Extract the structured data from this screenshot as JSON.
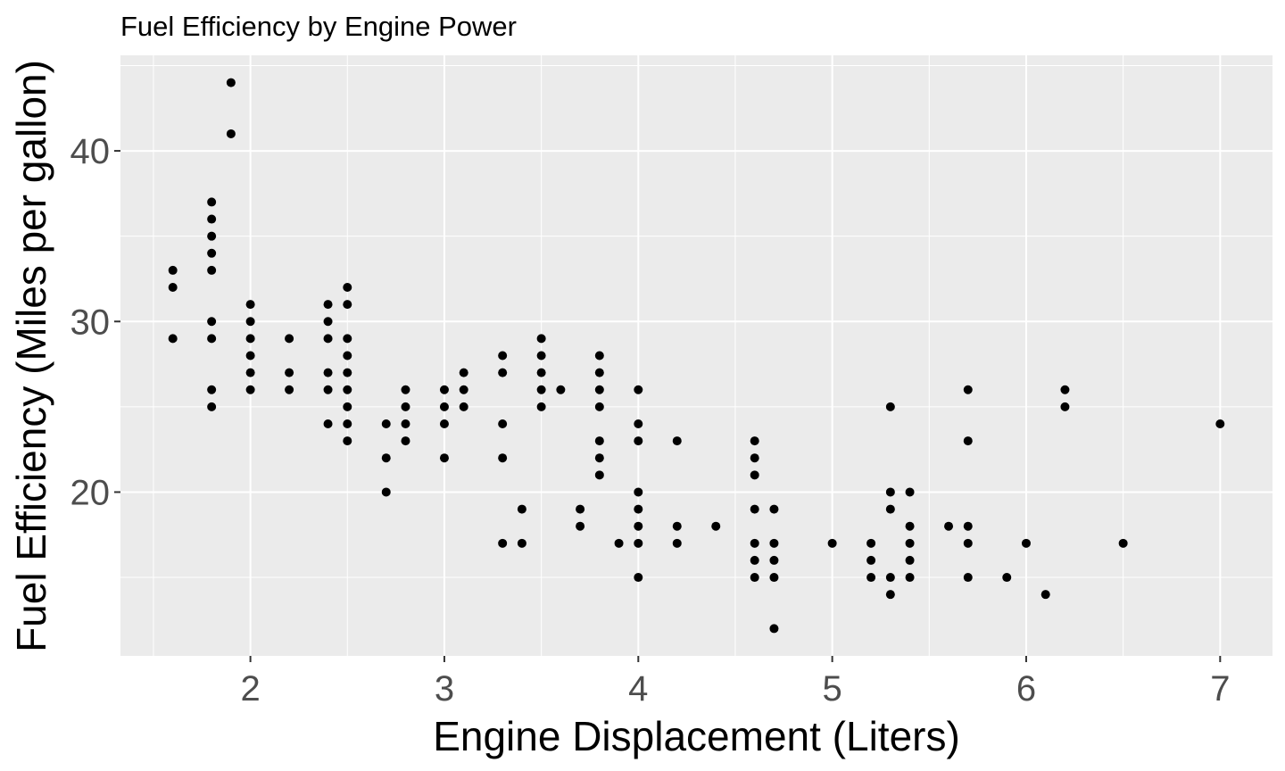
{
  "chart_data": {
    "type": "scatter",
    "title": "Fuel Efficiency by Engine Power",
    "xlabel": "Engine Displacement (Liters)",
    "ylabel": "Fuel Efficiency (Miles per gallon)",
    "xlim": [
      1.33,
      7.27
    ],
    "ylim": [
      10.4,
      45.6
    ],
    "xticks": [
      2,
      3,
      4,
      5,
      6,
      7
    ],
    "xtick_labels": [
      "2",
      "3",
      "4",
      "5",
      "6",
      "7"
    ],
    "yticks": [
      20,
      30,
      40
    ],
    "ytick_labels": [
      "20",
      "30",
      "40"
    ],
    "x_minor_gridlines": [
      1.5,
      2.5,
      3.5,
      4.5,
      5.5,
      6.5
    ],
    "y_minor_gridlines": [
      15,
      25,
      35,
      45
    ],
    "grid": true,
    "legend": "none",
    "colors": {
      "panel": "#ebebeb",
      "grid": "#ffffff",
      "point": "#000000",
      "tick_text": "#4d4d4d"
    },
    "points": [
      [
        1.6,
        33
      ],
      [
        1.6,
        32
      ],
      [
        1.6,
        29
      ],
      [
        1.8,
        37
      ],
      [
        1.8,
        36
      ],
      [
        1.8,
        35
      ],
      [
        1.8,
        34
      ],
      [
        1.8,
        33
      ],
      [
        1.8,
        30
      ],
      [
        1.8,
        29
      ],
      [
        1.8,
        26
      ],
      [
        1.8,
        25
      ],
      [
        1.9,
        44
      ],
      [
        1.9,
        41
      ],
      [
        2.0,
        31
      ],
      [
        2.0,
        30
      ],
      [
        2.0,
        29
      ],
      [
        2.0,
        28
      ],
      [
        2.0,
        27
      ],
      [
        2.0,
        26
      ],
      [
        2.2,
        29
      ],
      [
        2.2,
        27
      ],
      [
        2.2,
        26
      ],
      [
        2.4,
        31
      ],
      [
        2.4,
        30
      ],
      [
        2.4,
        29
      ],
      [
        2.4,
        27
      ],
      [
        2.4,
        26
      ],
      [
        2.4,
        24
      ],
      [
        2.5,
        32
      ],
      [
        2.5,
        31
      ],
      [
        2.5,
        29
      ],
      [
        2.5,
        28
      ],
      [
        2.5,
        27
      ],
      [
        2.5,
        26
      ],
      [
        2.5,
        25
      ],
      [
        2.5,
        24
      ],
      [
        2.5,
        23
      ],
      [
        2.7,
        24
      ],
      [
        2.7,
        22
      ],
      [
        2.7,
        20
      ],
      [
        2.8,
        26
      ],
      [
        2.8,
        25
      ],
      [
        2.8,
        24
      ],
      [
        2.8,
        23
      ],
      [
        3.0,
        26
      ],
      [
        3.0,
        25
      ],
      [
        3.0,
        24
      ],
      [
        3.0,
        22
      ],
      [
        3.1,
        27
      ],
      [
        3.1,
        26
      ],
      [
        3.1,
        25
      ],
      [
        3.3,
        28
      ],
      [
        3.3,
        27
      ],
      [
        3.3,
        24
      ],
      [
        3.3,
        22
      ],
      [
        3.3,
        17
      ],
      [
        3.4,
        19
      ],
      [
        3.4,
        17
      ],
      [
        3.5,
        29
      ],
      [
        3.5,
        28
      ],
      [
        3.5,
        27
      ],
      [
        3.5,
        26
      ],
      [
        3.5,
        25
      ],
      [
        3.6,
        26
      ],
      [
        3.7,
        19
      ],
      [
        3.7,
        18
      ],
      [
        3.8,
        28
      ],
      [
        3.8,
        27
      ],
      [
        3.8,
        26
      ],
      [
        3.8,
        25
      ],
      [
        3.8,
        23
      ],
      [
        3.8,
        22
      ],
      [
        3.8,
        21
      ],
      [
        3.9,
        17
      ],
      [
        4.0,
        26
      ],
      [
        4.0,
        24
      ],
      [
        4.0,
        23
      ],
      [
        4.0,
        20
      ],
      [
        4.0,
        19
      ],
      [
        4.0,
        18
      ],
      [
        4.0,
        17
      ],
      [
        4.0,
        15
      ],
      [
        4.2,
        23
      ],
      [
        4.2,
        18
      ],
      [
        4.2,
        17
      ],
      [
        4.4,
        18
      ],
      [
        4.6,
        23
      ],
      [
        4.6,
        22
      ],
      [
        4.6,
        21
      ],
      [
        4.6,
        19
      ],
      [
        4.6,
        17
      ],
      [
        4.6,
        16
      ],
      [
        4.6,
        15
      ],
      [
        4.7,
        19
      ],
      [
        4.7,
        17
      ],
      [
        4.7,
        16
      ],
      [
        4.7,
        15
      ],
      [
        4.7,
        12
      ],
      [
        5.0,
        17
      ],
      [
        5.2,
        17
      ],
      [
        5.2,
        16
      ],
      [
        5.2,
        15
      ],
      [
        5.3,
        25
      ],
      [
        5.3,
        20
      ],
      [
        5.3,
        19
      ],
      [
        5.3,
        15
      ],
      [
        5.3,
        14
      ],
      [
        5.4,
        20
      ],
      [
        5.4,
        18
      ],
      [
        5.4,
        17
      ],
      [
        5.4,
        16
      ],
      [
        5.4,
        15
      ],
      [
        5.6,
        18
      ],
      [
        5.7,
        26
      ],
      [
        5.7,
        23
      ],
      [
        5.7,
        18
      ],
      [
        5.7,
        17
      ],
      [
        5.7,
        15
      ],
      [
        5.9,
        15
      ],
      [
        6.0,
        17
      ],
      [
        6.1,
        14
      ],
      [
        6.2,
        26
      ],
      [
        6.2,
        25
      ],
      [
        6.5,
        17
      ],
      [
        7.0,
        24
      ]
    ]
  }
}
